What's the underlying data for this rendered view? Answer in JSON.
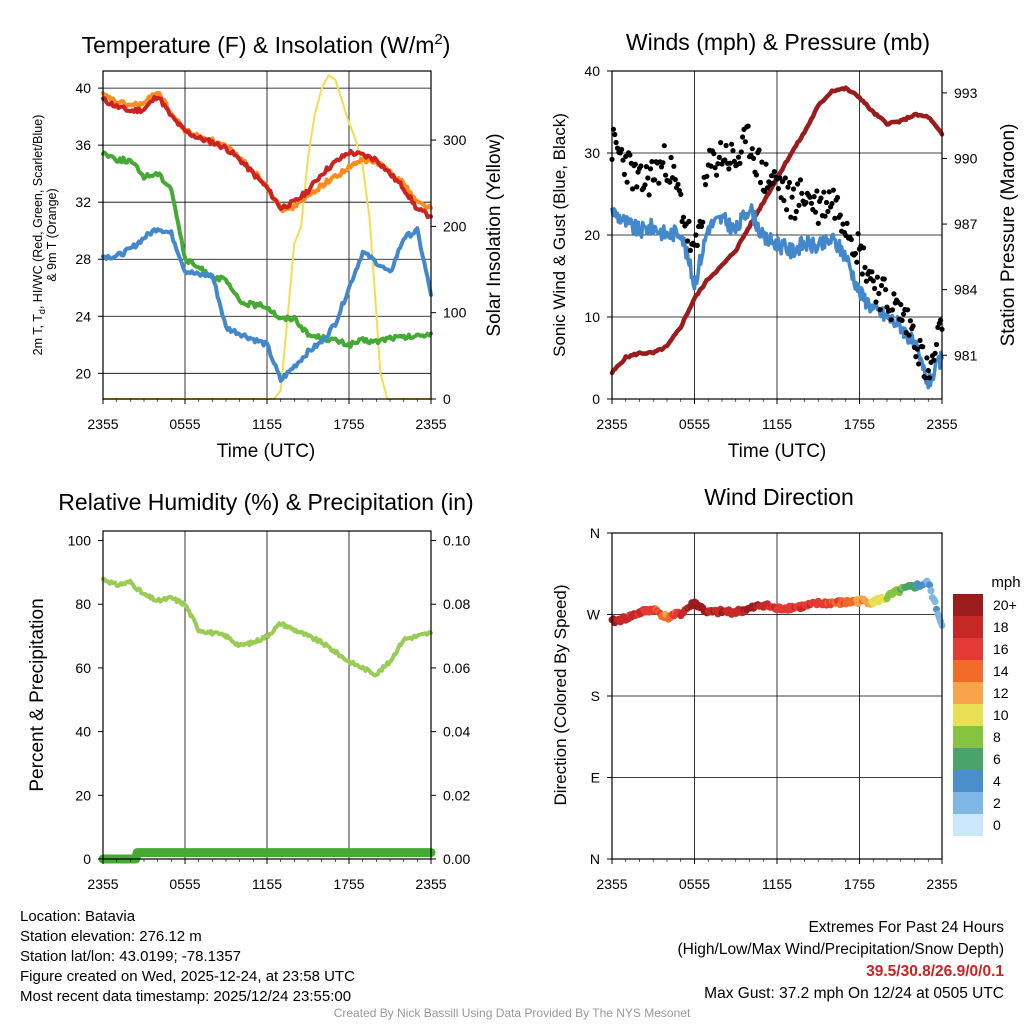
{
  "chart_data": [
    {
      "type": "line",
      "title": "Temperature (F) & Insolation (W/m²)",
      "title_main": "Temperature (F) & Insolation (W/m",
      "title_sup": "2",
      "title_end": ")",
      "xlabel": "Time (UTC)",
      "ylabel": "2m T, Td, HI/WC (Red, Green, Scarlet/Blue) & 9m T (Orange)",
      "ylabel_line1": "2m T, T",
      "ylabel_sub": "d",
      "ylabel_rest": ", HI/WC (Red, Green, Scarlet/Blue)",
      "ylabel_line2": "& 9m T (Orange)",
      "y2label": "Solar Insolation (Yellow)",
      "xticks": [
        "2355",
        "0555",
        "1155",
        "1755",
        "2355"
      ],
      "yticks": [
        20,
        24,
        28,
        32,
        36,
        40
      ],
      "ylim": [
        18.2,
        41.2
      ],
      "y2ticks": [
        0,
        100,
        200,
        300
      ],
      "y2lim": [
        0,
        380
      ],
      "xlim": [
        0,
        24
      ],
      "x": [
        0,
        1,
        2,
        3,
        4,
        5,
        6,
        7,
        8,
        9,
        10,
        11,
        12,
        13,
        14,
        15,
        16,
        17,
        18,
        19,
        20,
        21,
        22,
        23,
        24
      ],
      "series": [
        {
          "name": "2m T",
          "color": "#cc2222",
          "axis": "left",
          "values": [
            39.2,
            38.7,
            38.4,
            38.5,
            39.5,
            38.0,
            37.0,
            36.5,
            36.2,
            35.8,
            35.0,
            34.0,
            33.0,
            31.6,
            32.0,
            32.8,
            34.0,
            34.8,
            35.5,
            35.3,
            35.0,
            34.0,
            33.0,
            31.5,
            31.0
          ]
        },
        {
          "name": "9m T",
          "color": "#ff8c1a",
          "axis": "left",
          "values": [
            39.5,
            39.0,
            38.8,
            38.9,
            39.8,
            38.2,
            37.0,
            36.6,
            36.3,
            35.9,
            35.1,
            34.2,
            33.2,
            31.5,
            31.7,
            32.4,
            33.2,
            33.8,
            34.4,
            35.0,
            34.8,
            34.2,
            33.3,
            32.0,
            31.6
          ]
        },
        {
          "name": "Td",
          "color": "#44aa33",
          "axis": "left",
          "values": [
            35.5,
            35.0,
            34.9,
            33.8,
            34.0,
            33.0,
            28.0,
            27.4,
            26.8,
            26.5,
            25.0,
            24.8,
            24.7,
            23.8,
            23.9,
            22.7,
            22.5,
            22.3,
            22.0,
            22.3,
            22.2,
            22.5,
            22.5,
            22.6,
            22.8
          ]
        },
        {
          "name": "HI/WC",
          "color": "#4488cc",
          "axis": "left",
          "values": [
            28.2,
            28.2,
            28.7,
            29.5,
            30.2,
            29.8,
            27.2,
            26.9,
            26.9,
            23.2,
            22.8,
            22.4,
            22.0,
            19.5,
            20.5,
            21.5,
            22.2,
            23.5,
            26.0,
            28.5,
            27.8,
            27.0,
            29.5,
            30.0,
            25.5
          ]
        },
        {
          "name": "Solar Insolation",
          "color": "#f5dc50",
          "axis": "right",
          "x": [
            0,
            12.5,
            13.0,
            13.3,
            14.0,
            14.5,
            15.0,
            15.5,
            16.0,
            16.5,
            17.0,
            17.5,
            18.0,
            18.5,
            19.0,
            19.5,
            20.0,
            20.3,
            20.8,
            24
          ],
          "values": [
            0,
            0,
            10,
            60,
            180,
            200,
            280,
            330,
            360,
            375,
            370,
            345,
            320,
            300,
            270,
            210,
            100,
            30,
            0,
            0
          ]
        }
      ]
    },
    {
      "type": "line",
      "title": "Winds (mph) & Pressure (mb)",
      "xlabel": "Time (UTC)",
      "ylabel": "Sonic Wind & Gust (Blue, Black)",
      "y2label": "Station Pressure (Maroon)",
      "xticks": [
        "2355",
        "0555",
        "1155",
        "1755",
        "2355"
      ],
      "yticks": [
        0,
        10,
        20,
        30,
        40
      ],
      "ylim": [
        0,
        40
      ],
      "y2ticks": [
        981,
        984,
        987,
        990,
        993
      ],
      "y2lim": [
        979.0,
        994.0
      ],
      "xlim": [
        0,
        24
      ],
      "x": [
        0,
        1,
        2,
        3,
        4,
        5,
        6,
        7,
        8,
        9,
        10,
        11,
        12,
        13,
        14,
        15,
        16,
        17,
        18,
        19,
        20,
        21,
        22,
        23,
        24
      ],
      "series": [
        {
          "name": "Sonic Wind",
          "color": "#4488cc",
          "style": "line",
          "values": [
            23.0,
            21.5,
            20.5,
            21.0,
            20.0,
            20.5,
            14.0,
            21.0,
            22.0,
            20.5,
            23.5,
            19.5,
            19.0,
            18.0,
            19.0,
            18.5,
            19.5,
            17.5,
            13.0,
            11.0,
            10.0,
            9.0,
            6.5,
            2.0,
            5.0
          ]
        },
        {
          "name": "Gust",
          "color": "#000000",
          "style": "points",
          "values": [
            31.0,
            29.0,
            26.0,
            27.5,
            29.0,
            24.0,
            17.0,
            28.0,
            30.0,
            29.0,
            31.5,
            27.0,
            26.5,
            24.0,
            25.0,
            23.5,
            24.5,
            22.0,
            18.0,
            14.5,
            12.0,
            10.5,
            8.0,
            2.5,
            8.5
          ]
        },
        {
          "name": "Station Pressure",
          "color": "#9b1c1c",
          "axis": "right",
          "style": "line",
          "values": [
            980.2,
            980.9,
            981.1,
            981.1,
            981.4,
            982.3,
            983.6,
            984.5,
            985.1,
            985.8,
            986.9,
            988.0,
            989.1,
            990.2,
            991.2,
            992.4,
            993.1,
            993.2,
            992.8,
            992.1,
            991.6,
            991.7,
            992.0,
            991.9,
            991.1
          ]
        }
      ]
    },
    {
      "type": "line",
      "title": "Relative Humidity (%) & Precipitation (in)",
      "ylabel": "Percent & Precipitation",
      "xticks": [
        "2355",
        "0555",
        "1155",
        "1755",
        "2355"
      ],
      "yticks": [
        0,
        20,
        40,
        60,
        80,
        100
      ],
      "ylim": [
        0,
        103
      ],
      "y2ticks": [
        "0.00",
        "0.02",
        "0.04",
        "0.06",
        "0.08",
        "0.10"
      ],
      "y2lim": [
        0,
        0.103
      ],
      "xlim": [
        0,
        24
      ],
      "x": [
        0,
        1,
        2,
        3,
        4,
        5,
        6,
        7,
        8,
        9,
        10,
        11,
        12,
        13,
        14,
        15,
        16,
        17,
        18,
        19,
        20,
        21,
        22,
        23,
        24
      ],
      "series": [
        {
          "name": "Relative Humidity",
          "color": "#99cc55",
          "values": [
            88,
            86,
            87,
            83,
            81,
            82,
            80,
            72,
            71,
            70,
            67,
            68,
            70,
            74,
            72,
            70,
            68,
            65,
            62,
            60,
            58,
            62,
            69,
            70,
            71
          ]
        },
        {
          "name": "Precipitation",
          "color": "#44aa33",
          "x": [
            0,
            2.4,
            2.5,
            24
          ],
          "values": [
            0,
            0,
            0.002,
            0.002
          ]
        }
      ]
    },
    {
      "type": "scatter",
      "title": "Wind Direction",
      "ylabel": "Direction (Colored By Speed)",
      "xticks": [
        "2355",
        "0555",
        "1155",
        "1755",
        "2355"
      ],
      "yticks": [
        "N",
        "E",
        "S",
        "W",
        "N"
      ],
      "ylim": [
        0,
        360
      ],
      "xlim": [
        0,
        24
      ],
      "x": [
        0,
        1,
        2,
        3,
        4,
        5,
        6,
        7,
        8,
        9,
        10,
        11,
        12,
        13,
        14,
        15,
        16,
        17,
        18,
        19,
        20,
        21,
        22,
        23,
        24
      ],
      "series": [
        {
          "name": "Direction (deg)",
          "values": [
            262,
            266,
            272,
            276,
            267,
            271,
            283,
            272,
            273,
            273,
            276,
            281,
            276,
            278,
            279,
            282,
            283,
            283,
            285,
            284,
            289,
            297,
            301,
            305,
            258
          ],
          "speed": [
            20,
            19,
            18,
            17,
            14,
            18,
            22,
            20,
            20,
            19,
            21,
            19,
            18,
            17,
            18,
            17,
            16,
            16,
            14,
            12,
            10,
            8,
            7,
            4,
            3
          ]
        }
      ],
      "legend_title": "mph",
      "legend_labels": [
        "20+",
        "18",
        "16",
        "14",
        "12",
        "10",
        "8",
        "6",
        "4",
        "2",
        "0"
      ],
      "legend_colors": [
        "#9b1c1c",
        "#c62828",
        "#e53935",
        "#f26b2a",
        "#f9a44a",
        "#e8e052",
        "#86c440",
        "#4aa36b",
        "#4a8fcc",
        "#7fb8e6",
        "#c9e8fa"
      ]
    }
  ],
  "info": {
    "location": "Location: Batavia",
    "elevation": "Station elevation: 276.12 m",
    "latlon": "Station lat/lon: 43.0199; -78.1357",
    "created": "Figure created on Wed, 2025-12-24, at 23:58 UTC",
    "recent": "Most recent data timestamp: 2025/12/24 23:55:00"
  },
  "extremes": {
    "title": "Extremes For Past 24 Hours",
    "subtitle": "(High/Low/Max Wind/Precipitation/Snow Depth)",
    "values": "39.5/30.8/26.9/0/0.1",
    "gust": "Max Gust: 37.2 mph On 12/24 at 0505 UTC"
  },
  "credit": "Created By Nick Bassill Using Data Provided By The NYS Mesonet"
}
